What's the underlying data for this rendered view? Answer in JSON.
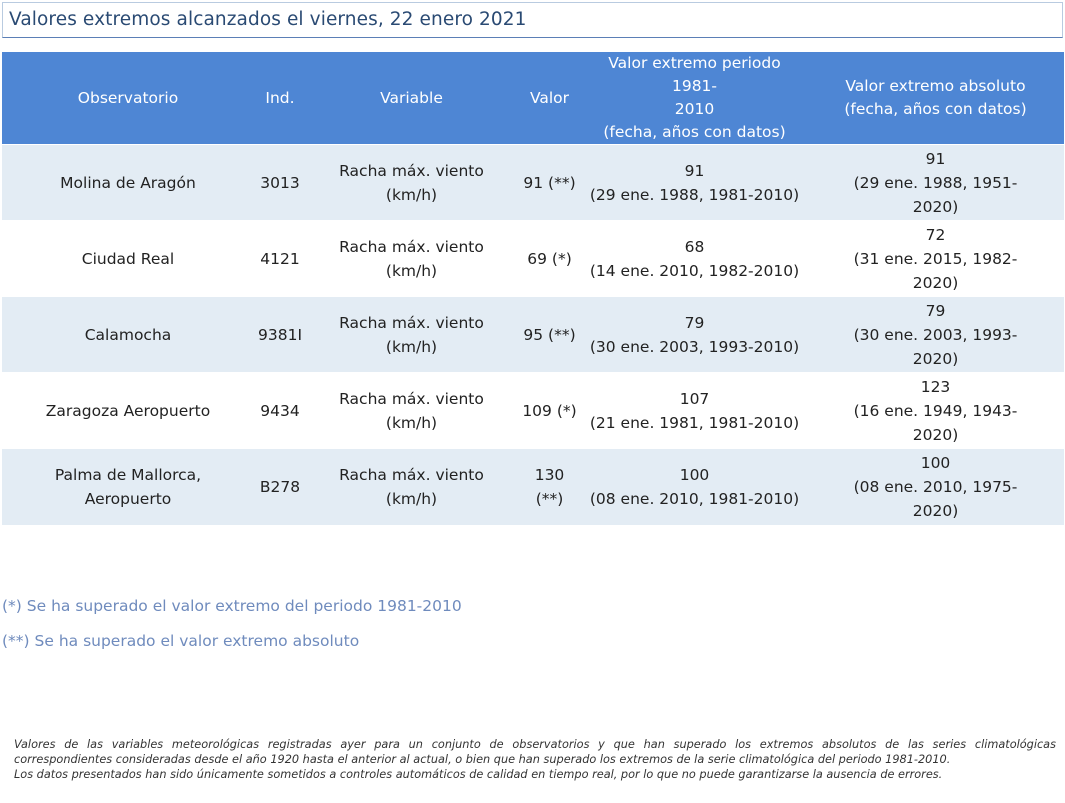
{
  "title": "Valores extremos alcanzados el viernes, 22 enero 2021",
  "table": {
    "headers": {
      "observatorio": "Observatorio",
      "ind": "Ind.",
      "variable": "Variable",
      "valor": "Valor",
      "periodo": [
        "Valor extremo periodo 1981-",
        "2010",
        "(fecha, años con datos)"
      ],
      "absoluto": [
        "Valor extremo absoluto",
        "(fecha, años con datos)"
      ]
    },
    "rows": [
      {
        "observatorio": [
          "Molina de Aragón"
        ],
        "ind": "3013",
        "variable": [
          "Racha máx. viento",
          "(km/h)"
        ],
        "valor": [
          "91 (**)"
        ],
        "periodo": [
          "91",
          "(29 ene. 1988, 1981-2010)"
        ],
        "absoluto": [
          "91",
          "(29 ene. 1988, 1951-",
          "2020)"
        ]
      },
      {
        "observatorio": [
          "Ciudad Real"
        ],
        "ind": "4121",
        "variable": [
          "Racha máx. viento",
          "(km/h)"
        ],
        "valor": [
          "69 (*)"
        ],
        "periodo": [
          "68",
          "(14 ene. 2010, 1982-2010)"
        ],
        "absoluto": [
          "72",
          "(31 ene. 2015, 1982-",
          "2020)"
        ]
      },
      {
        "observatorio": [
          "Calamocha"
        ],
        "ind": "9381I",
        "variable": [
          "Racha máx. viento",
          "(km/h)"
        ],
        "valor": [
          "95 (**)"
        ],
        "periodo": [
          "79",
          "(30 ene. 2003, 1993-2010)"
        ],
        "absoluto": [
          "79",
          "(30 ene. 2003, 1993-",
          "2020)"
        ]
      },
      {
        "observatorio": [
          "Zaragoza Aeropuerto"
        ],
        "ind": "9434",
        "variable": [
          "Racha máx. viento",
          "(km/h)"
        ],
        "valor": [
          "109 (*)"
        ],
        "periodo": [
          "107",
          "(21 ene. 1981, 1981-2010)"
        ],
        "absoluto": [
          "123",
          "(16 ene. 1949, 1943-",
          "2020)"
        ]
      },
      {
        "observatorio": [
          "Palma de Mallorca,",
          "Aeropuerto"
        ],
        "ind": "B278",
        "variable": [
          "Racha máx. viento",
          "(km/h)"
        ],
        "valor": [
          "130",
          "(**)"
        ],
        "periodo": [
          "100",
          "(08 ene. 2010, 1981-2010)"
        ],
        "absoluto": [
          "100",
          "(08 ene. 2010, 1975-",
          "2020)"
        ]
      }
    ]
  },
  "notes": {
    "single": "(*) Se ha superado el valor extremo del periodo 1981-2010",
    "double": "(**) Se ha superado el valor extremo absoluto"
  },
  "footer": {
    "line1": "Valores de las variables meteorológicas registradas ayer para un conjunto de observatorios y que han superado los extremos absolutos de las series climatológicas",
    "line2": "correspondientes consideradas desde el año 1920 hasta el anterior al actual, o bien que han superado los extremos de la serie climatológica del periodo 1981-2010.",
    "line3": "Los datos presentados han sido únicamente sometidos a controles automáticos de calidad en tiempo real, por lo que no puede garantizarse la ausencia de errores."
  },
  "colors": {
    "header_bg": "#4e86d4",
    "row_alt_bg": "#e3ecf4",
    "title_text": "#2a4a73",
    "note_text": "#6f8bbd"
  }
}
